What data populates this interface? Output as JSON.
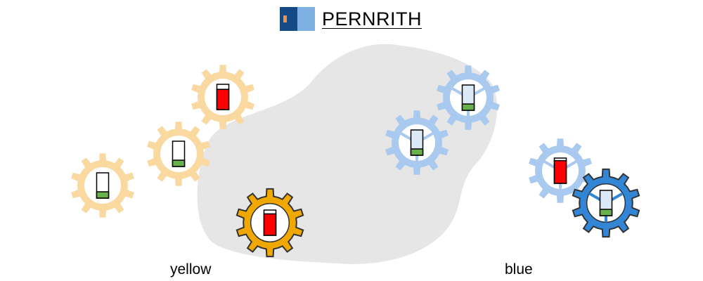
{
  "header": {
    "title": "PERNRITH"
  },
  "colors": {
    "island": "#e6e6e6",
    "logo_dark": "#154a86",
    "logo_light": "#7fb0e3",
    "logo_emblem": "#f2924a",
    "yellow_faded": "#fad9a0",
    "yellow_active": "#f0a800",
    "blue_faded": "#a9c9ee",
    "blue_active": "#3385d6",
    "gauge_red": "#ff0000",
    "gauge_green": "#6ab04c",
    "active_outline": "#333333"
  },
  "teams": [
    {
      "id": "yellow",
      "label": "yellow",
      "gears": [
        {
          "level": 0.25,
          "state": "faded"
        },
        {
          "level": 0.25,
          "state": "faded"
        },
        {
          "level": 0.8,
          "state": "faded",
          "fill": "red"
        },
        {
          "level": 0.85,
          "state": "active",
          "fill": "red"
        }
      ]
    },
    {
      "id": "blue",
      "label": "blue",
      "gears": [
        {
          "level": 0.25,
          "state": "faded"
        },
        {
          "level": 0.25,
          "state": "faded"
        },
        {
          "level": 0.9,
          "state": "faded",
          "fill": "red"
        },
        {
          "level": 0.25,
          "state": "active"
        }
      ]
    }
  ]
}
